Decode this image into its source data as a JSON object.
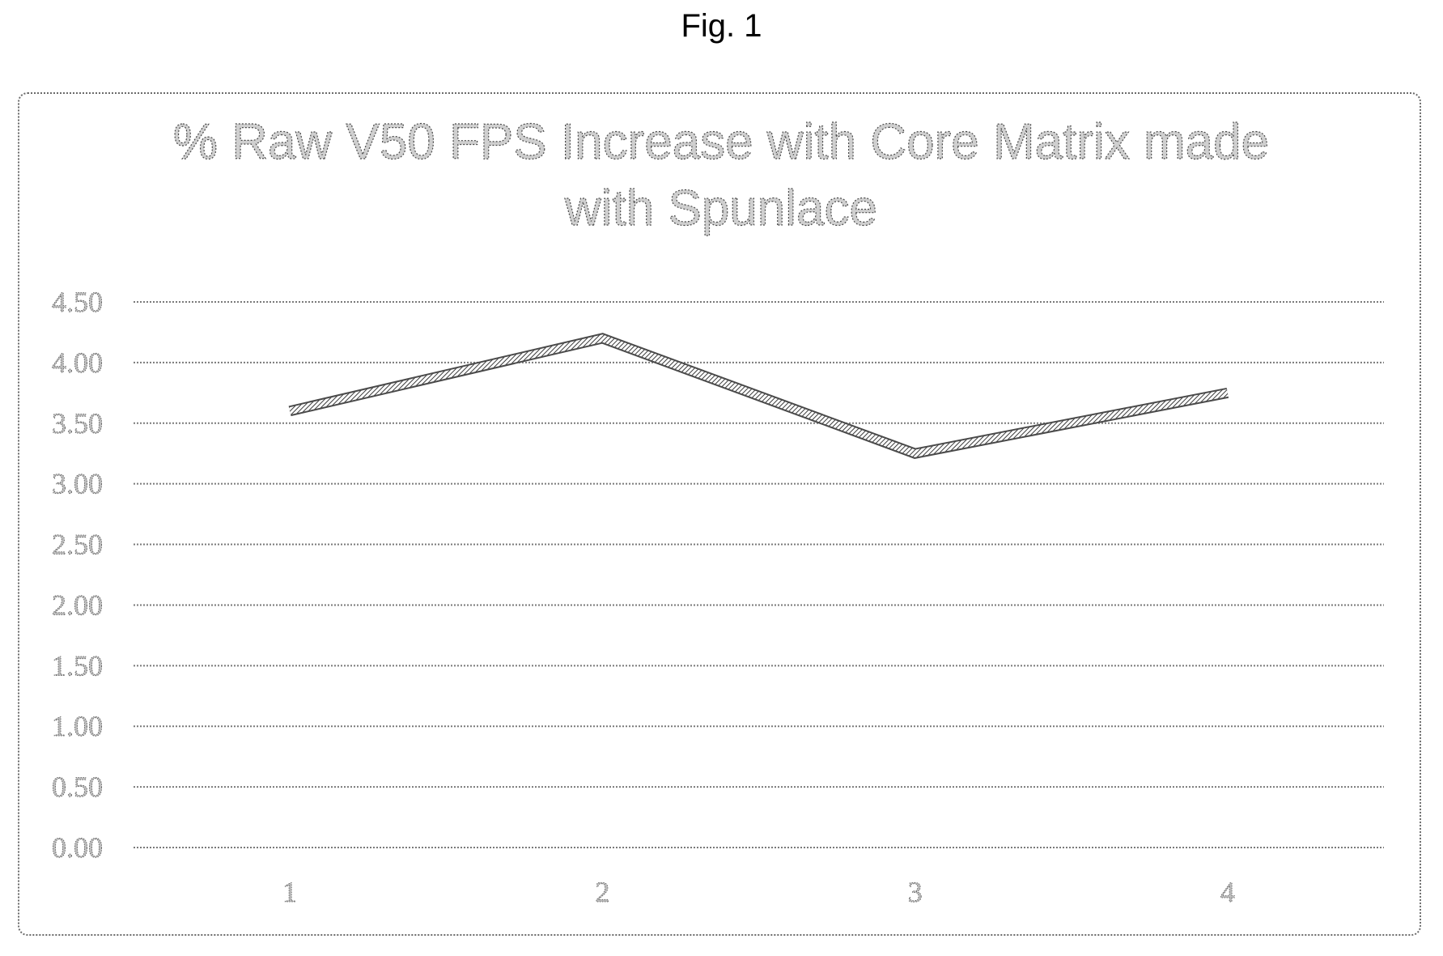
{
  "figure_label": "Fig. 1",
  "chart_data": {
    "type": "line",
    "title": "% Raw V50 FPS Increase with Core Matrix made with Spunlace",
    "title_lines": [
      "% Raw V50 FPS Increase with Core Matrix made",
      "with Spunlace"
    ],
    "xlabel": "",
    "ylabel": "",
    "categories": [
      "1",
      "2",
      "3",
      "4"
    ],
    "y_ticks": [
      "0.00",
      "0.50",
      "1.00",
      "1.50",
      "2.00",
      "2.50",
      "3.00",
      "3.50",
      "4.00",
      "4.50"
    ],
    "ylim": [
      0,
      4.5
    ],
    "grid": true,
    "legend": "none",
    "series": [
      {
        "values": [
          3.6,
          4.2,
          3.25,
          3.75
        ]
      }
    ],
    "line_color": "#4a4a4a"
  }
}
